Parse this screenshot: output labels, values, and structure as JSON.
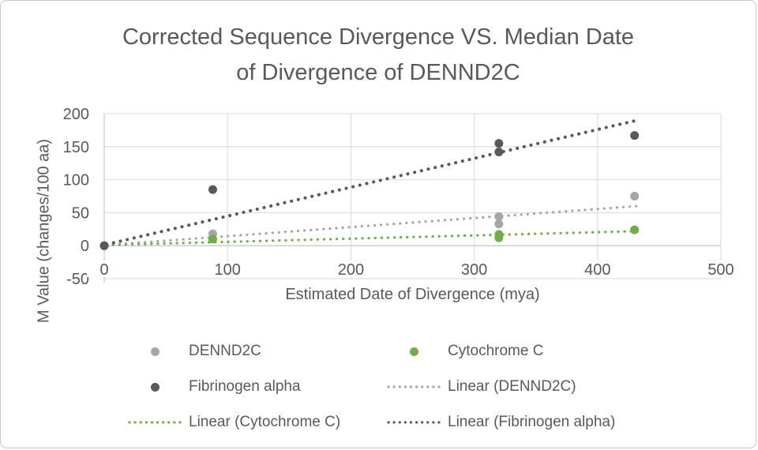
{
  "title_lines": [
    "Corrected Sequence Divergence VS. Median Date",
    "of Divergence of DENND2C"
  ],
  "colors": {
    "text": "#595959",
    "gridline": "#d9d9d9",
    "axis": "#bfbfbf",
    "background": "#ffffff",
    "dennd2c": "#a6a6a6",
    "cytochrome_c": "#70ad47",
    "fibrinogen_alpha": "#595959"
  },
  "chart_data": {
    "type": "scatter",
    "title": "Corrected Sequence Divergence VS. Median Date of Divergence of DENND2C",
    "xlabel": "Estimated Date of Divergence (mya)",
    "ylabel": "M Value (changes/100 aa)",
    "xlim": [
      0,
      500
    ],
    "ylim": [
      -50,
      200
    ],
    "xticks": [
      0,
      100,
      200,
      300,
      400,
      500
    ],
    "yticks": [
      -50,
      0,
      50,
      100,
      150,
      200
    ],
    "grid": true,
    "legend_position": "bottom",
    "series": [
      {
        "name": "DENND2C",
        "color": "#a6a6a6",
        "points": [
          [
            0,
            0
          ],
          [
            88,
            18
          ],
          [
            320,
            44
          ],
          [
            320,
            33
          ],
          [
            430,
            75
          ]
        ]
      },
      {
        "name": "Cytochrome C",
        "color": "#70ad47",
        "points": [
          [
            0,
            0
          ],
          [
            88,
            10
          ],
          [
            320,
            17
          ],
          [
            320,
            12
          ],
          [
            430,
            24
          ]
        ]
      },
      {
        "name": "Fibrinogen alpha",
        "color": "#595959",
        "points": [
          [
            0,
            0
          ],
          [
            88,
            85
          ],
          [
            320,
            155
          ],
          [
            320,
            142
          ],
          [
            430,
            167
          ]
        ]
      }
    ],
    "trendlines": [
      {
        "name": "Linear (DENND2C)",
        "color": "#a6a6a6",
        "x0": 2,
        "y0": 1,
        "x1": 432,
        "y1": 60
      },
      {
        "name": "Linear (Cytochrome C)",
        "color": "#70ad47",
        "x0": 2,
        "y0": 1,
        "x1": 432,
        "y1": 22
      },
      {
        "name": "Linear (Fibrinogen alpha)",
        "color": "#595959",
        "x0": 2,
        "y0": 2,
        "x1": 432,
        "y1": 190
      }
    ],
    "legend": {
      "items": [
        {
          "label": "DENND2C",
          "marker": "dot",
          "color": "#a6a6a6",
          "row": 0,
          "col": 0
        },
        {
          "label": "Cytochrome C",
          "marker": "dot",
          "color": "#70ad47",
          "row": 0,
          "col": 1
        },
        {
          "label": "Fibrinogen alpha",
          "marker": "dot",
          "color": "#595959",
          "row": 1,
          "col": 0
        },
        {
          "label": "Linear (DENND2C)",
          "marker": "dotted-line",
          "color": "#a6a6a6",
          "row": 1,
          "col": 1
        },
        {
          "label": "Linear (Cytochrome C)",
          "marker": "dotted-line",
          "color": "#70ad47",
          "row": 2,
          "col": 0
        },
        {
          "label": "Linear (Fibrinogen alpha)",
          "marker": "dotted-line",
          "color": "#595959",
          "row": 2,
          "col": 1
        }
      ]
    }
  }
}
